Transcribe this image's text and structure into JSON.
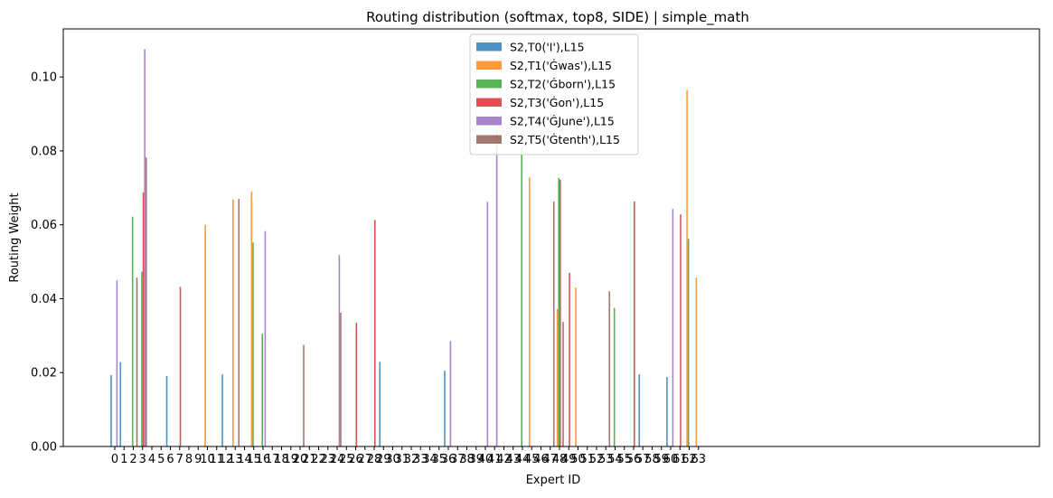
{
  "chart_data": {
    "type": "bar",
    "title": "Routing distribution (softmax, top8, SIDE) | simple_math",
    "xlabel": "Expert ID",
    "ylabel": "Routing Weight",
    "ylim": [
      0,
      0.113
    ],
    "yticks": [
      "0.00",
      "0.02",
      "0.04",
      "0.06",
      "0.08",
      "0.10"
    ],
    "grid": false,
    "legend_position": "top-center",
    "categories": [
      "0",
      "1",
      "2",
      "3",
      "4",
      "5",
      "6",
      "7",
      "8",
      "9",
      "10",
      "11",
      "12",
      "13",
      "14",
      "15",
      "16",
      "17",
      "18",
      "19",
      "20",
      "21",
      "22",
      "23",
      "24",
      "25",
      "26",
      "27",
      "28",
      "29",
      "30",
      "31",
      "32",
      "33",
      "34",
      "35",
      "36",
      "37",
      "38",
      "39",
      "40",
      "41",
      "42",
      "43",
      "44",
      "45",
      "46",
      "47",
      "48",
      "49",
      "50",
      "51",
      "52",
      "53",
      "54",
      "55",
      "56",
      "57",
      "58",
      "59",
      "60",
      "61",
      "62",
      "63"
    ],
    "series": [
      {
        "name": "S2,T0('I'),L15",
        "color": "#1f77b4",
        "points": [
          [
            0,
            0.0193
          ],
          [
            1,
            0.0228
          ],
          [
            6,
            0.0191
          ],
          [
            12,
            0.0195
          ],
          [
            29,
            0.0229
          ],
          [
            36,
            0.0205
          ],
          [
            57,
            0.0195
          ],
          [
            60,
            0.0188
          ]
        ]
      },
      {
        "name": "S2,T1('Ġwas'),L15",
        "color": "#ff7f0e",
        "points": [
          [
            10,
            0.06
          ],
          [
            13,
            0.0668
          ],
          [
            15,
            0.069
          ],
          [
            45,
            0.0728
          ],
          [
            48,
            0.0372
          ],
          [
            50,
            0.043
          ],
          [
            62,
            0.0965
          ],
          [
            63,
            0.0457
          ]
        ]
      },
      {
        "name": "S2,T2('Ġborn'),L15",
        "color": "#2ca02c",
        "points": [
          [
            2,
            0.0622
          ],
          [
            3,
            0.0473
          ],
          [
            15,
            0.0552
          ],
          [
            16,
            0.0305
          ],
          [
            44,
            0.0808
          ],
          [
            48,
            0.0727
          ],
          [
            54,
            0.0375
          ],
          [
            62,
            0.0562
          ]
        ]
      },
      {
        "name": "S2,T3('Ġon'),L15",
        "color": "#d62728",
        "points": [
          [
            3,
            0.0688
          ],
          [
            7,
            0.0432
          ],
          [
            26,
            0.0335
          ],
          [
            28,
            0.0613
          ],
          [
            48,
            0.0722
          ],
          [
            49,
            0.047
          ],
          [
            56,
            0.0663
          ],
          [
            61,
            0.0628
          ]
        ]
      },
      {
        "name": "S2,T4('ĠJune'),L15",
        "color": "#9467bd",
        "points": [
          [
            0,
            0.045
          ],
          [
            3,
            0.1075
          ],
          [
            16,
            0.0583
          ],
          [
            24,
            0.0518
          ],
          [
            36,
            0.0285
          ],
          [
            40,
            0.0662
          ],
          [
            41,
            0.086
          ],
          [
            60,
            0.0643
          ]
        ]
      },
      {
        "name": "S2,T5('Ġtenth'),L15",
        "color": "#8c564b",
        "points": [
          [
            2,
            0.0457
          ],
          [
            3,
            0.0782
          ],
          [
            13,
            0.067
          ],
          [
            20,
            0.0275
          ],
          [
            24,
            0.0362
          ],
          [
            47,
            0.0663
          ],
          [
            48,
            0.0337
          ],
          [
            53,
            0.042
          ]
        ]
      }
    ]
  }
}
